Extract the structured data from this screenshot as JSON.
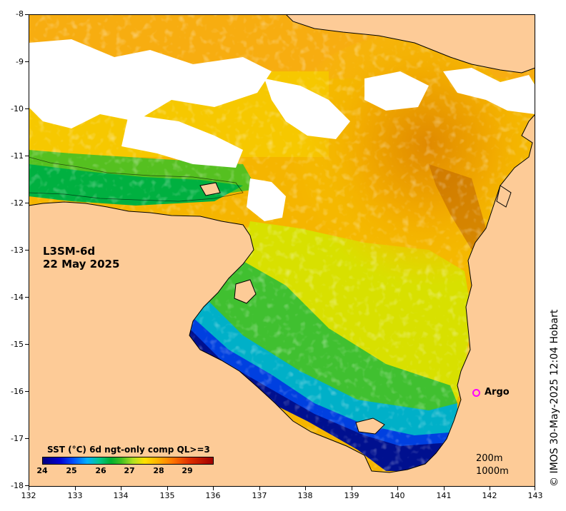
{
  "map": {
    "product": "L3SM-6d",
    "date": "22 May 2025",
    "x_ticks": [
      "132",
      "133",
      "134",
      "135",
      "136",
      "137",
      "138",
      "139",
      "140",
      "141",
      "142",
      "143"
    ],
    "y_ticks": [
      "-8",
      "-9",
      "-10",
      "-11",
      "-12",
      "-13",
      "-14",
      "-15",
      "-16",
      "-17",
      "-18"
    ],
    "lon_range": [
      132,
      143
    ],
    "lat_range": [
      -18,
      -8
    ],
    "land_color": "#fdcb97",
    "nodata_color": "#ffffff"
  },
  "colorbar": {
    "title": "SST (°C) 6d ngt-only comp QL>=3",
    "ticks": [
      "24",
      "25",
      "26",
      "27",
      "28",
      "29"
    ],
    "range": [
      24,
      30
    ],
    "cmap": "jet"
  },
  "argo": {
    "label": "Argo",
    "color": "#ff00ff"
  },
  "contours": {
    "label_200": "200m",
    "label_1000": "1000m"
  },
  "credit": "© IMOS 30-May-2025 12:04 Hobart"
}
